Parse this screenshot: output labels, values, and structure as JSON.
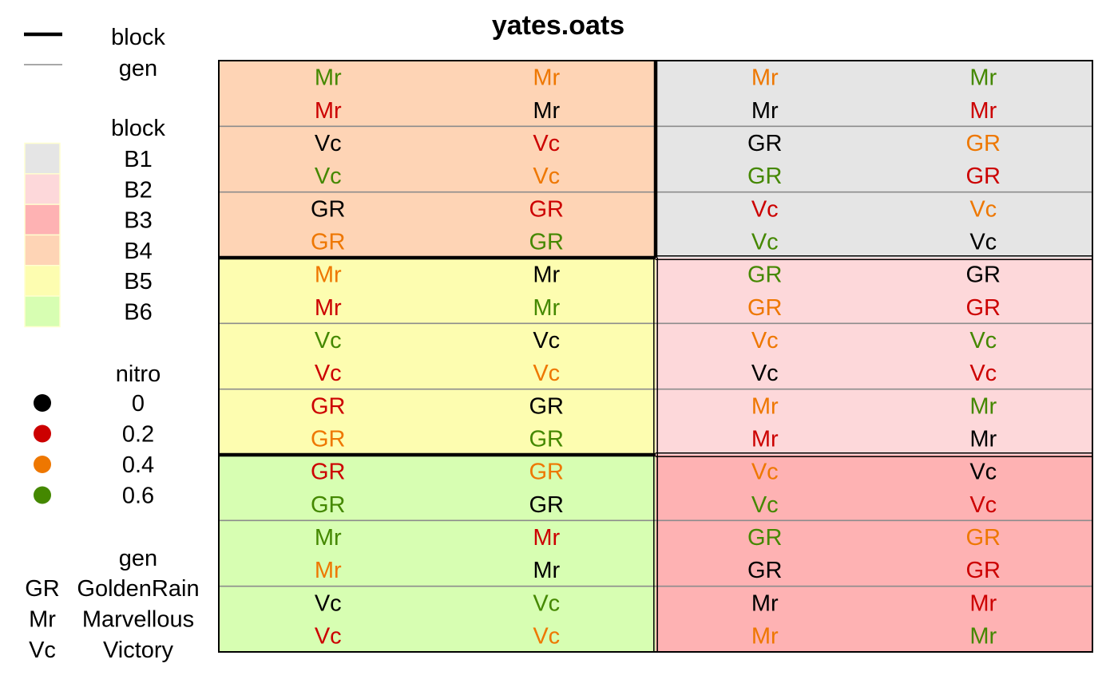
{
  "chart_data": {
    "type": "heatmap",
    "title": "yates.oats",
    "layout": {
      "rows": 18,
      "cols": 4
    },
    "legend": {
      "lines": [
        {
          "label": "block",
          "role": "block"
        },
        {
          "label": "gen",
          "role": "gen"
        }
      ],
      "block_title": "block",
      "blocks": [
        {
          "label": "B1",
          "color": "#e5e5e5"
        },
        {
          "label": "B2",
          "color": "#fdd8da"
        },
        {
          "label": "B3",
          "color": "#feb2b3"
        },
        {
          "label": "B4",
          "color": "#fed4b5"
        },
        {
          "label": "B5",
          "color": "#fdfdb0"
        },
        {
          "label": "B6",
          "color": "#d7feb2"
        }
      ],
      "nitro_title": "nitro",
      "nitro": [
        {
          "label": "0",
          "color": "#000000"
        },
        {
          "label": "0.2",
          "color": "#cc0000"
        },
        {
          "label": "0.4",
          "color": "#ee7700"
        },
        {
          "label": "0.6",
          "color": "#448800"
        }
      ],
      "gen_title": "gen",
      "gens": [
        {
          "code": "GR",
          "name": "GoldenRain"
        },
        {
          "code": "Mr",
          "name": "Marvellous"
        },
        {
          "code": "Vc",
          "name": "Victory"
        }
      ]
    },
    "block_regions": [
      {
        "block": "B4",
        "rows": [
          1,
          6
        ],
        "cols": [
          1,
          2
        ]
      },
      {
        "block": "B1",
        "rows": [
          1,
          6
        ],
        "cols": [
          3,
          4
        ]
      },
      {
        "block": "B5",
        "rows": [
          7,
          12
        ],
        "cols": [
          1,
          2
        ]
      },
      {
        "block": "B2",
        "rows": [
          7,
          12
        ],
        "cols": [
          3,
          4
        ]
      },
      {
        "block": "B6",
        "rows": [
          13,
          18
        ],
        "cols": [
          1,
          2
        ]
      },
      {
        "block": "B3",
        "rows": [
          13,
          18
        ],
        "cols": [
          3,
          4
        ]
      }
    ],
    "cells": [
      [
        "Mr",
        0.6,
        "Mr",
        0.4,
        "Mr",
        0.4,
        "Mr",
        0.6
      ],
      [
        "Mr",
        0.2,
        "Mr",
        0,
        "Mr",
        0,
        "Mr",
        0.2
      ],
      [
        "Vc",
        0,
        "Vc",
        0.2,
        "GR",
        0,
        "GR",
        0.4
      ],
      [
        "Vc",
        0.6,
        "Vc",
        0.4,
        "GR",
        0.6,
        "GR",
        0.2
      ],
      [
        "GR",
        0,
        "GR",
        0.2,
        "Vc",
        0.2,
        "Vc",
        0.4
      ],
      [
        "GR",
        0.4,
        "GR",
        0.6,
        "Vc",
        0.6,
        "Vc",
        0
      ],
      [
        "Mr",
        0.4,
        "Mr",
        0,
        "GR",
        0.6,
        "GR",
        0
      ],
      [
        "Mr",
        0.2,
        "Mr",
        0.6,
        "GR",
        0.4,
        "GR",
        0.2
      ],
      [
        "Vc",
        0.6,
        "Vc",
        0,
        "Vc",
        0.4,
        "Vc",
        0.6
      ],
      [
        "Vc",
        0.2,
        "Vc",
        0.4,
        "Vc",
        0,
        "Vc",
        0.2
      ],
      [
        "GR",
        0.2,
        "GR",
        0,
        "Mr",
        0.4,
        "Mr",
        0.6
      ],
      [
        "GR",
        0.4,
        "GR",
        0.6,
        "Mr",
        0.2,
        "Mr",
        0
      ],
      [
        "GR",
        0.2,
        "GR",
        0.4,
        "Vc",
        0.4,
        "Vc",
        0
      ],
      [
        "GR",
        0.6,
        "GR",
        0,
        "Vc",
        0.6,
        "Vc",
        0.2
      ],
      [
        "Mr",
        0.6,
        "Mr",
        0.2,
        "GR",
        0.6,
        "GR",
        0.4
      ],
      [
        "Mr",
        0.4,
        "Mr",
        0,
        "GR",
        0,
        "GR",
        0.2
      ],
      [
        "Vc",
        0,
        "Vc",
        0.6,
        "Mr",
        0,
        "Mr",
        0.2
      ],
      [
        "Vc",
        0.2,
        "Vc",
        0.4,
        "Mr",
        0.4,
        "Mr",
        0.6
      ]
    ]
  }
}
